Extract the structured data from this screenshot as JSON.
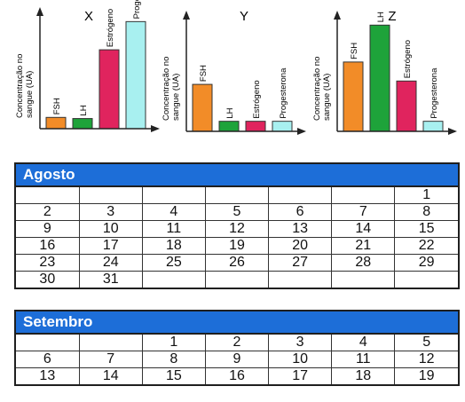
{
  "chart_data": [
    {
      "type": "bar",
      "title": "X",
      "ylabel": "Concentração no sangue (UA)",
      "categories": [
        "FSH",
        "LH",
        "Estrógeno",
        "Progesterona"
      ],
      "values": [
        10,
        9,
        70,
        95
      ],
      "ylim": [
        0,
        100
      ],
      "colors": [
        "#f28c28",
        "#1ea33a",
        "#e0245e",
        "#a8f0f0"
      ]
    },
    {
      "type": "bar",
      "title": "Y",
      "ylabel": "Concentração no sangue (UA)",
      "categories": [
        "FSH",
        "LH",
        "Estrógeno",
        "Progesterona"
      ],
      "values": [
        42,
        9,
        9,
        9
      ],
      "ylim": [
        0,
        100
      ],
      "colors": [
        "#f28c28",
        "#1ea33a",
        "#e0245e",
        "#a8f0f0"
      ]
    },
    {
      "type": "bar",
      "title": "Z",
      "ylabel": "Concentração no sangue (UA)",
      "categories": [
        "FSH",
        "LH",
        "Estrógeno",
        "Progesterona"
      ],
      "values": [
        62,
        95,
        45,
        9
      ],
      "ylim": [
        0,
        100
      ],
      "colors": [
        "#f28c28",
        "#1ea33a",
        "#e0245e",
        "#a8f0f0"
      ]
    }
  ],
  "calendars": [
    {
      "month": "Agosto",
      "weeks": [
        [
          "",
          "",
          "",
          "",
          "",
          "",
          "1"
        ],
        [
          "2",
          "3",
          "4",
          "5",
          "6",
          "7",
          "8"
        ],
        [
          "9",
          "10",
          "11",
          "12",
          "13",
          "14",
          "15"
        ],
        [
          "16",
          "17",
          "18",
          "19",
          "20",
          "21",
          "22"
        ],
        [
          "23",
          "24",
          "25",
          "26",
          "27",
          "28",
          "29"
        ],
        [
          "30",
          "31",
          "",
          "",
          "",
          "",
          ""
        ]
      ]
    },
    {
      "month": "Setembro",
      "weeks": [
        [
          "",
          "",
          "1",
          "2",
          "3",
          "4",
          "5"
        ],
        [
          "6",
          "7",
          "8",
          "9",
          "10",
          "11",
          "12"
        ],
        [
          "13",
          "14",
          "15",
          "16",
          "17",
          "18",
          "19"
        ]
      ]
    }
  ]
}
